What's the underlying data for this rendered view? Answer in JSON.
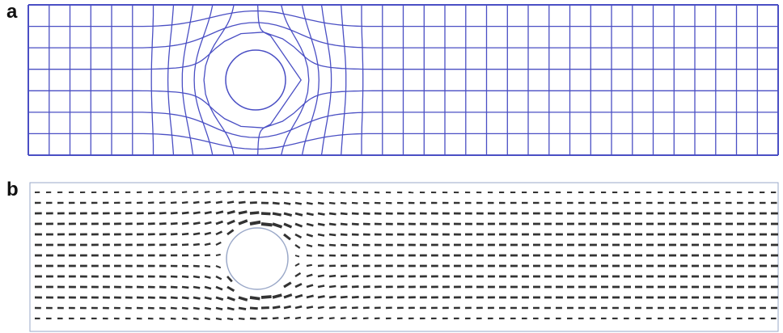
{
  "panels": [
    {
      "label": "a"
    },
    {
      "label": "b"
    }
  ]
}
